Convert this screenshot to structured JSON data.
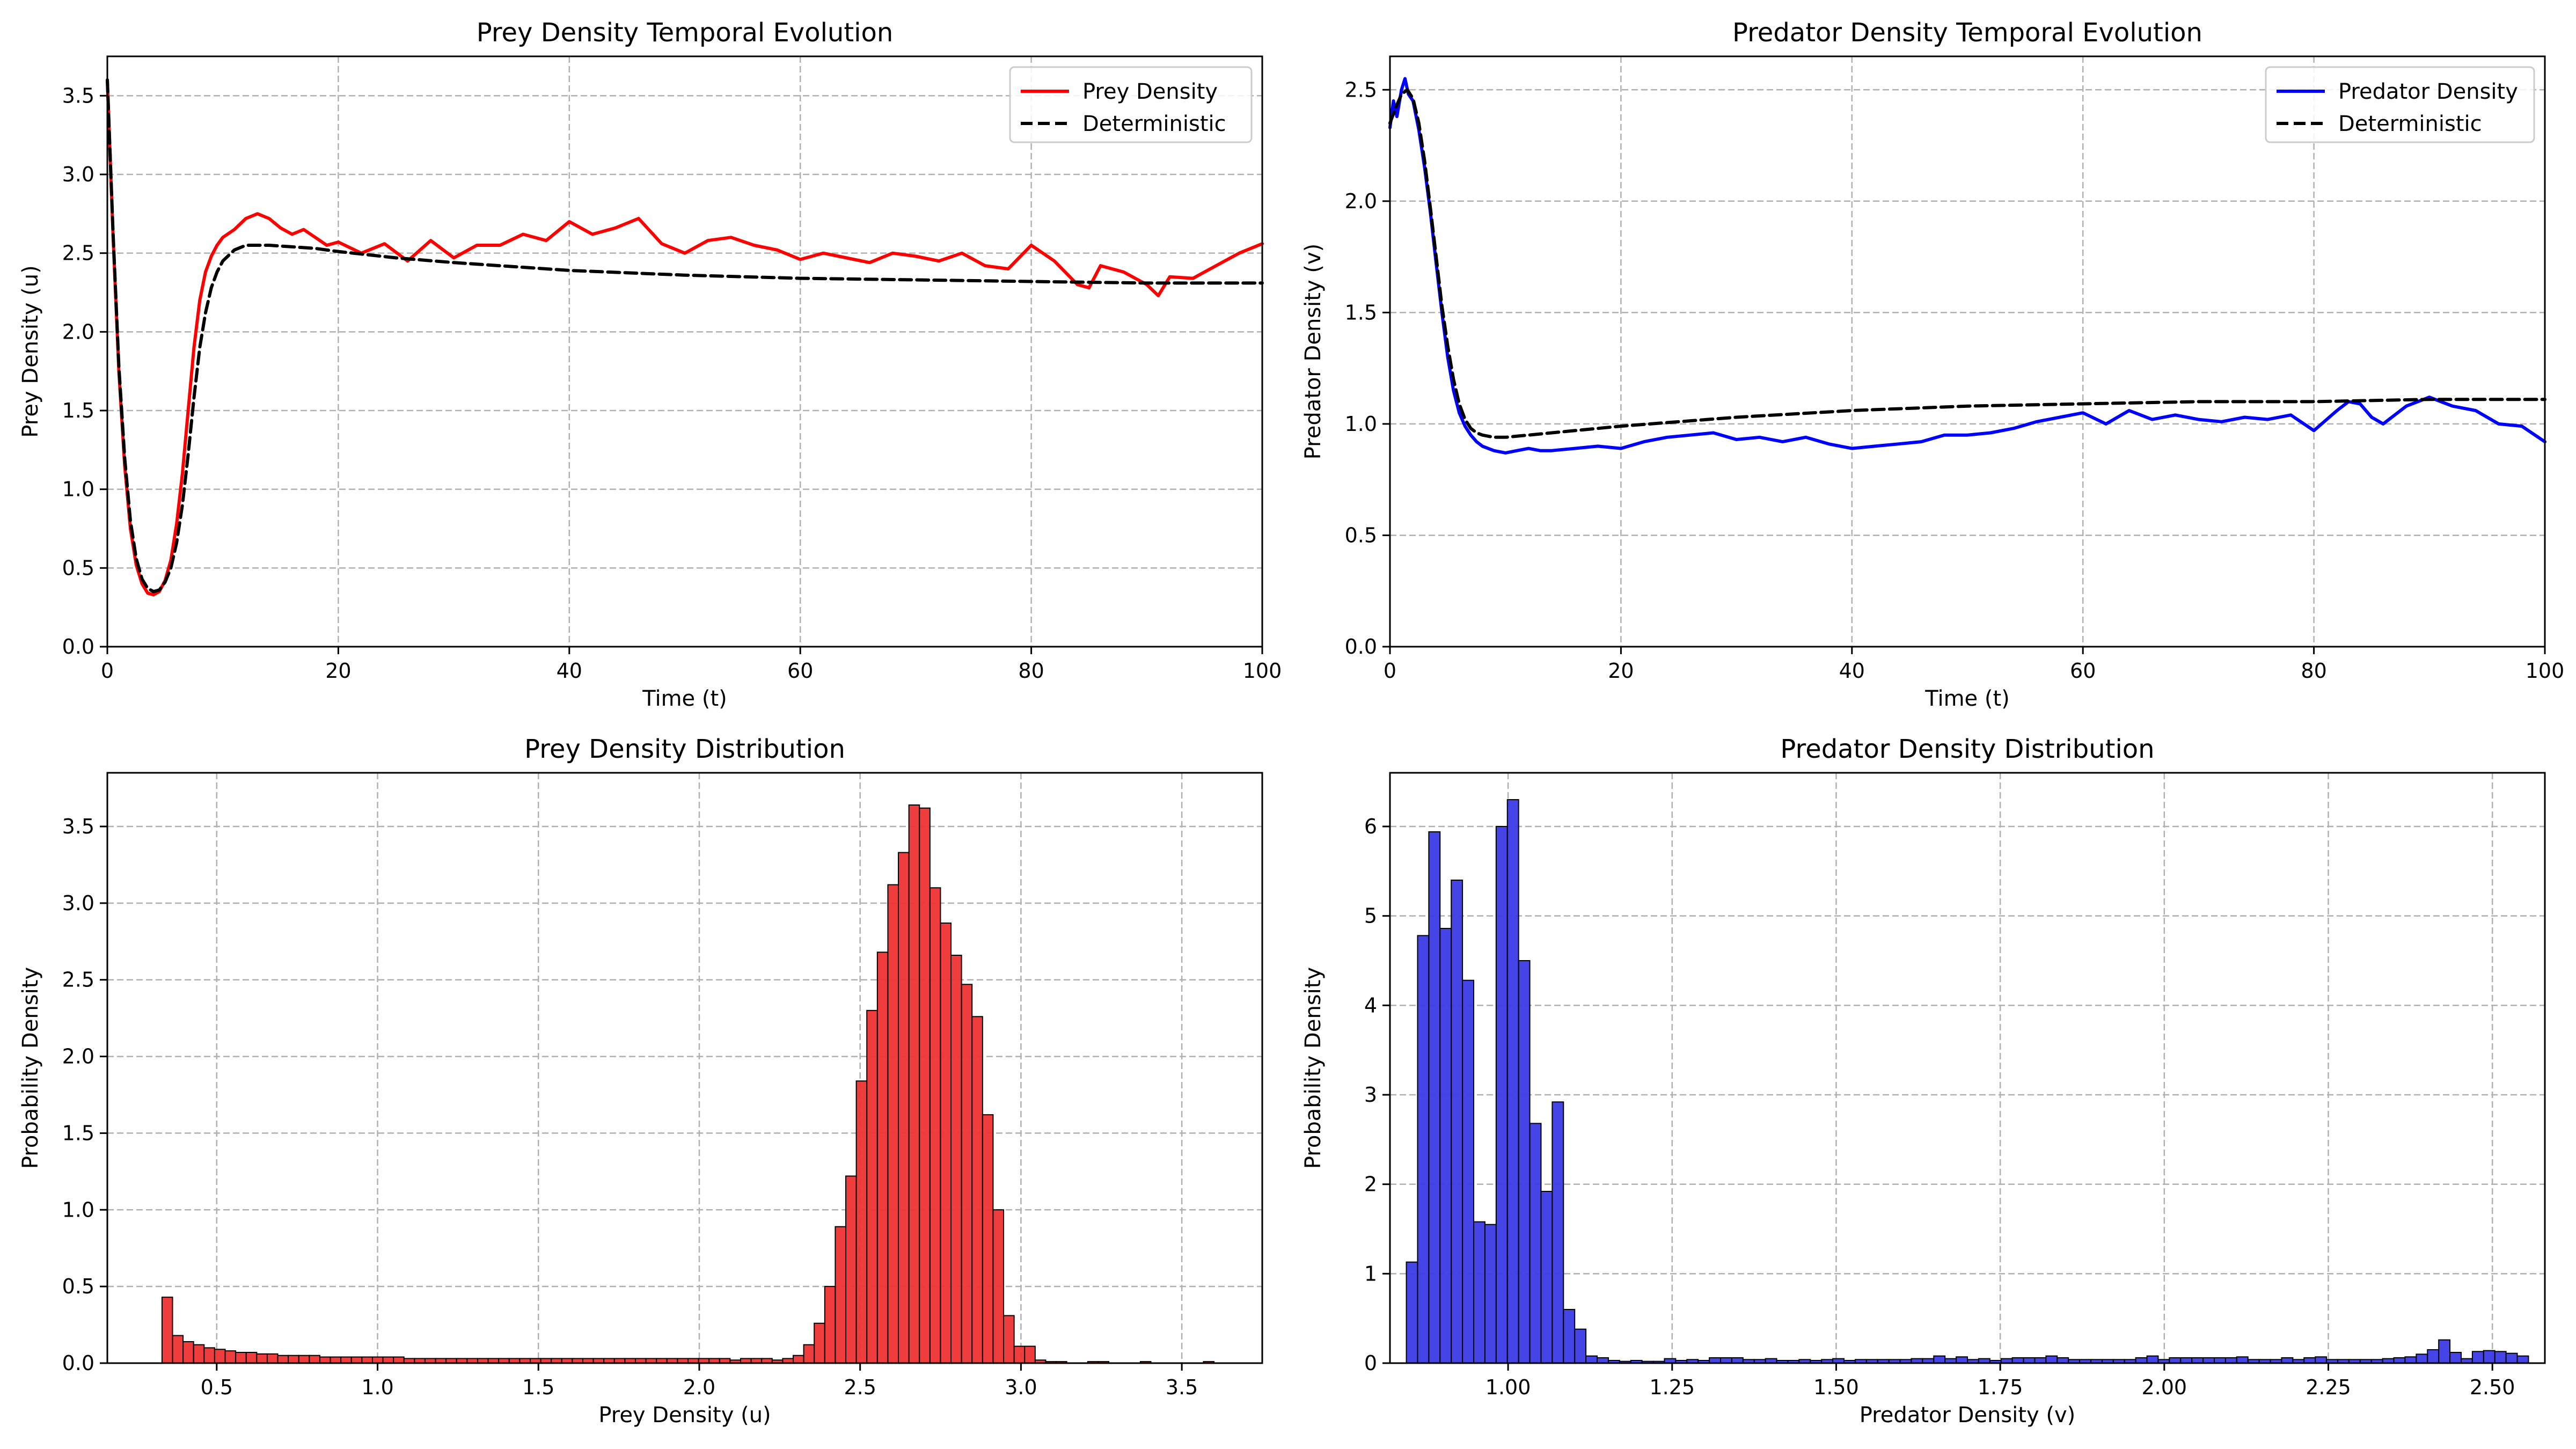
{
  "colors": {
    "prey": "#ff0000",
    "predator": "#0000ff",
    "deterministic": "#000000",
    "prey_hist": "#ee3333",
    "predator_hist": "#3a3ae6",
    "grid": "#b0b0b0"
  },
  "chart_data": [
    {
      "type": "line",
      "title": "Prey Density Temporal Evolution",
      "xlabel": "Time (t)",
      "ylabel": "Prey Density (u)",
      "xlim": [
        0,
        100
      ],
      "ylim": [
        0,
        3.75
      ],
      "xticks": [
        0,
        20,
        40,
        60,
        80,
        100
      ],
      "yticks": [
        0.0,
        0.5,
        1.0,
        1.5,
        2.0,
        2.5,
        3.0,
        3.5
      ],
      "grid": true,
      "legend_loc": "upper right",
      "series": [
        {
          "name": "Prey Density",
          "color": "#ff0000",
          "style": "solid",
          "x": [
            0,
            0.5,
            1,
            1.5,
            2,
            2.5,
            3,
            3.5,
            4,
            4.5,
            5,
            5.5,
            6,
            6.5,
            7,
            7.5,
            8,
            8.5,
            9,
            9.5,
            10,
            11,
            12,
            13,
            14,
            15,
            16,
            17,
            18,
            19,
            20,
            22,
            24,
            26,
            28,
            30,
            32,
            34,
            36,
            38,
            40,
            42,
            44,
            46,
            48,
            50,
            52,
            54,
            56,
            58,
            60,
            62,
            64,
            66,
            68,
            70,
            72,
            74,
            76,
            78,
            80,
            82,
            84,
            85,
            86,
            88,
            90,
            91,
            92,
            94,
            96,
            98,
            100
          ],
          "y": [
            3.6,
            2.6,
            1.75,
            1.15,
            0.75,
            0.52,
            0.4,
            0.34,
            0.33,
            0.35,
            0.42,
            0.55,
            0.78,
            1.1,
            1.5,
            1.9,
            2.2,
            2.38,
            2.48,
            2.55,
            2.6,
            2.65,
            2.72,
            2.75,
            2.72,
            2.66,
            2.62,
            2.65,
            2.6,
            2.55,
            2.57,
            2.5,
            2.56,
            2.45,
            2.58,
            2.47,
            2.55,
            2.55,
            2.62,
            2.58,
            2.7,
            2.62,
            2.66,
            2.72,
            2.56,
            2.5,
            2.58,
            2.6,
            2.55,
            2.52,
            2.46,
            2.5,
            2.47,
            2.44,
            2.5,
            2.48,
            2.45,
            2.5,
            2.42,
            2.4,
            2.55,
            2.45,
            2.3,
            2.28,
            2.42,
            2.38,
            2.3,
            2.23,
            2.35,
            2.34,
            2.42,
            2.5,
            2.56
          ]
        },
        {
          "name": "Deterministic",
          "color": "#000000",
          "style": "dashed",
          "x": [
            0,
            0.5,
            1,
            1.5,
            2,
            2.5,
            3,
            3.5,
            4,
            4.5,
            5,
            5.5,
            6,
            6.5,
            7,
            7.5,
            8,
            8.5,
            9,
            9.5,
            10,
            11,
            12,
            13,
            14,
            16,
            18,
            20,
            25,
            30,
            40,
            50,
            60,
            70,
            80,
            90,
            100
          ],
          "y": [
            3.6,
            2.62,
            1.78,
            1.2,
            0.8,
            0.56,
            0.43,
            0.37,
            0.35,
            0.36,
            0.41,
            0.5,
            0.66,
            0.9,
            1.22,
            1.58,
            1.9,
            2.12,
            2.28,
            2.38,
            2.45,
            2.52,
            2.55,
            2.55,
            2.55,
            2.54,
            2.53,
            2.51,
            2.47,
            2.44,
            2.39,
            2.36,
            2.34,
            2.33,
            2.32,
            2.31,
            2.31
          ]
        }
      ]
    },
    {
      "type": "line",
      "title": "Predator Density Temporal Evolution",
      "xlabel": "Time (t)",
      "ylabel": "Predator Density (v)",
      "xlim": [
        0,
        100
      ],
      "ylim": [
        0,
        2.65
      ],
      "xticks": [
        0,
        20,
        40,
        60,
        80,
        100
      ],
      "yticks": [
        0.0,
        0.5,
        1.0,
        1.5,
        2.0,
        2.5
      ],
      "grid": true,
      "legend_loc": "upper right",
      "series": [
        {
          "name": "Predator Density",
          "color": "#0000ff",
          "style": "solid",
          "x": [
            0,
            0.3,
            0.6,
            1,
            1.3,
            1.6,
            2,
            2.5,
            3,
            3.5,
            4,
            4.5,
            5,
            5.5,
            6,
            6.5,
            7,
            7.5,
            8,
            8.5,
            9,
            10,
            11,
            12,
            13,
            14,
            16,
            18,
            20,
            22,
            24,
            26,
            28,
            30,
            32,
            34,
            36,
            38,
            40,
            42,
            44,
            46,
            48,
            50,
            52,
            54,
            56,
            58,
            60,
            62,
            64,
            66,
            68,
            70,
            72,
            74,
            76,
            78,
            80,
            82,
            83,
            84,
            85,
            86,
            88,
            90,
            91,
            92,
            94,
            96,
            98,
            100
          ],
          "y": [
            2.33,
            2.45,
            2.38,
            2.5,
            2.55,
            2.48,
            2.45,
            2.32,
            2.15,
            1.95,
            1.72,
            1.5,
            1.3,
            1.15,
            1.05,
            0.99,
            0.95,
            0.92,
            0.9,
            0.89,
            0.88,
            0.87,
            0.88,
            0.89,
            0.88,
            0.88,
            0.89,
            0.9,
            0.89,
            0.92,
            0.94,
            0.95,
            0.96,
            0.93,
            0.94,
            0.92,
            0.94,
            0.91,
            0.89,
            0.9,
            0.91,
            0.92,
            0.95,
            0.95,
            0.96,
            0.98,
            1.01,
            1.03,
            1.05,
            1.0,
            1.06,
            1.02,
            1.04,
            1.02,
            1.01,
            1.03,
            1.02,
            1.04,
            0.97,
            1.06,
            1.1,
            1.09,
            1.03,
            1.0,
            1.08,
            1.12,
            1.1,
            1.08,
            1.06,
            1.0,
            0.99,
            0.92
          ]
        },
        {
          "name": "Deterministic",
          "color": "#000000",
          "style": "dashed",
          "x": [
            0,
            0.5,
            1,
            1.5,
            2,
            2.5,
            3,
            3.5,
            4,
            4.5,
            5,
            5.5,
            6,
            6.5,
            7,
            7.5,
            8,
            9,
            10,
            12,
            14,
            16,
            20,
            25,
            30,
            40,
            50,
            60,
            70,
            80,
            90,
            100
          ],
          "y": [
            2.35,
            2.42,
            2.48,
            2.5,
            2.46,
            2.35,
            2.18,
            1.97,
            1.75,
            1.53,
            1.35,
            1.2,
            1.09,
            1.02,
            0.98,
            0.96,
            0.95,
            0.94,
            0.94,
            0.95,
            0.96,
            0.97,
            0.99,
            1.01,
            1.03,
            1.06,
            1.08,
            1.09,
            1.1,
            1.1,
            1.11,
            1.11
          ]
        }
      ]
    },
    {
      "type": "bar",
      "title": "Prey Density Distribution",
      "xlabel": "Prey Density (u)",
      "ylabel": "Probability Density",
      "xlim": [
        0.16,
        3.75
      ],
      "ylim": [
        0,
        3.85
      ],
      "xticks": [
        0.5,
        1.0,
        1.5,
        2.0,
        2.5,
        3.0,
        3.5
      ],
      "yticks": [
        0.0,
        0.5,
        1.0,
        1.5,
        2.0,
        2.5,
        3.0,
        3.5
      ],
      "grid": true,
      "bin_start": 0.33,
      "bin_width": 0.0327,
      "color": "#ee3333",
      "values": [
        0.43,
        0.18,
        0.14,
        0.12,
        0.1,
        0.09,
        0.08,
        0.07,
        0.07,
        0.06,
        0.06,
        0.05,
        0.05,
        0.05,
        0.05,
        0.04,
        0.04,
        0.04,
        0.04,
        0.04,
        0.04,
        0.04,
        0.04,
        0.03,
        0.03,
        0.03,
        0.03,
        0.03,
        0.03,
        0.03,
        0.03,
        0.03,
        0.03,
        0.03,
        0.03,
        0.03,
        0.03,
        0.03,
        0.03,
        0.03,
        0.03,
        0.03,
        0.03,
        0.03,
        0.03,
        0.03,
        0.03,
        0.03,
        0.03,
        0.03,
        0.03,
        0.03,
        0.03,
        0.03,
        0.02,
        0.03,
        0.03,
        0.03,
        0.02,
        0.03,
        0.05,
        0.12,
        0.26,
        0.5,
        0.89,
        1.22,
        1.84,
        2.3,
        2.68,
        3.12,
        3.33,
        3.64,
        3.62,
        3.1,
        2.87,
        2.66,
        2.47,
        2.26,
        1.62,
        1.0,
        0.31,
        0.11,
        0.11,
        0.02,
        0.01,
        0.01,
        0.0,
        0.0,
        0.01,
        0.01,
        0.0,
        0.0,
        0.0,
        0.01,
        0.0,
        0.0,
        0.0,
        0.0,
        0.0,
        0.01
      ]
    },
    {
      "type": "bar",
      "title": "Predator Density Distribution",
      "xlabel": "Predator Density (v)",
      "ylabel": "Probability Density",
      "xlim": [
        0.82,
        2.58
      ],
      "ylim": [
        0,
        6.6
      ],
      "xticks": [
        1.0,
        1.25,
        1.5,
        1.75,
        2.0,
        2.25,
        2.5
      ],
      "yticks": [
        0,
        1,
        2,
        3,
        4,
        5,
        6
      ],
      "grid": true,
      "bin_start": 0.845,
      "bin_width": 0.0171,
      "color": "#3a3ae6",
      "values": [
        1.13,
        4.78,
        5.94,
        4.86,
        5.4,
        4.28,
        1.58,
        1.55,
        6.0,
        6.3,
        4.5,
        2.68,
        1.92,
        2.92,
        0.6,
        0.38,
        0.08,
        0.06,
        0.03,
        0.02,
        0.03,
        0.02,
        0.02,
        0.05,
        0.03,
        0.04,
        0.03,
        0.06,
        0.06,
        0.06,
        0.04,
        0.04,
        0.05,
        0.03,
        0.03,
        0.04,
        0.03,
        0.04,
        0.05,
        0.03,
        0.04,
        0.04,
        0.04,
        0.04,
        0.04,
        0.05,
        0.05,
        0.08,
        0.05,
        0.07,
        0.04,
        0.05,
        0.03,
        0.05,
        0.06,
        0.06,
        0.06,
        0.08,
        0.06,
        0.04,
        0.04,
        0.04,
        0.04,
        0.04,
        0.04,
        0.06,
        0.08,
        0.04,
        0.06,
        0.06,
        0.06,
        0.06,
        0.06,
        0.06,
        0.07,
        0.04,
        0.04,
        0.04,
        0.06,
        0.04,
        0.06,
        0.07,
        0.04,
        0.04,
        0.04,
        0.04,
        0.04,
        0.05,
        0.06,
        0.07,
        0.1,
        0.15,
        0.26,
        0.12,
        0.05,
        0.13,
        0.14,
        0.13,
        0.11,
        0.08
      ]
    }
  ]
}
